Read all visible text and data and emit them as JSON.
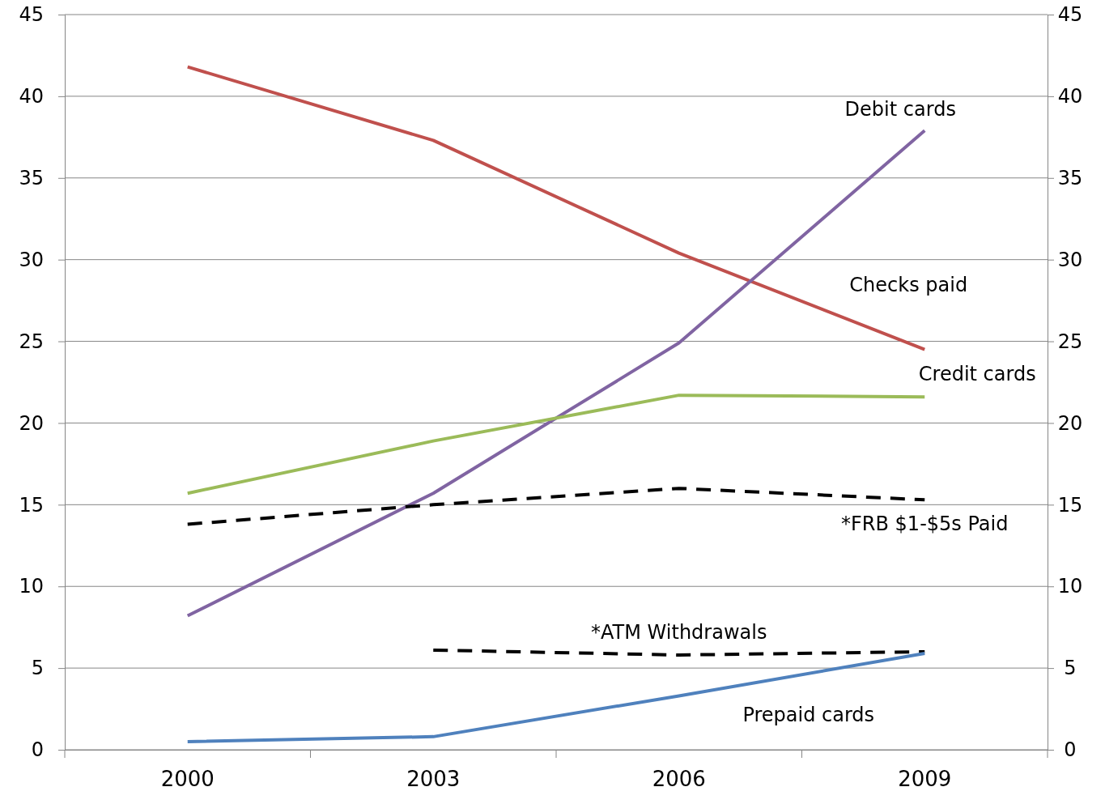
{
  "chart_data": {
    "type": "line",
    "categories": [
      "2000",
      "2003",
      "2006",
      "2009"
    ],
    "series": [
      {
        "name": "Checks paid",
        "color": "#c0504d",
        "values": [
          41.8,
          37.3,
          30.4,
          24.5
        ]
      },
      {
        "name": "Debit cards",
        "color": "#8064a2",
        "values": [
          8.2,
          15.7,
          24.9,
          37.9
        ]
      },
      {
        "name": "Credit cards",
        "color": "#9bbb59",
        "values": [
          15.7,
          18.9,
          21.7,
          21.6
        ]
      },
      {
        "name": "*FRB $1-$5s Paid",
        "color": "#000000",
        "line_style": "dashed",
        "values": [
          13.8,
          15.0,
          16.0,
          15.3
        ]
      },
      {
        "name": "*ATM Withdrawals",
        "color": "#000000",
        "line_style": "dashed",
        "values": [
          null,
          6.1,
          5.8,
          6.0
        ]
      },
      {
        "name": "Prepaid cards",
        "color": "#4f81bd",
        "values": [
          0.5,
          0.8,
          3.3,
          5.9
        ]
      }
    ],
    "ylim": [
      0,
      45
    ],
    "yticks": [
      0,
      5,
      10,
      15,
      20,
      25,
      30,
      35,
      40,
      45
    ],
    "y2lim": [
      0,
      45
    ],
    "y2ticks": [
      0,
      5,
      10,
      15,
      20,
      25,
      30,
      35,
      40,
      45
    ],
    "grid": "y",
    "legend": false,
    "marker": "none",
    "line_style": "solid"
  }
}
